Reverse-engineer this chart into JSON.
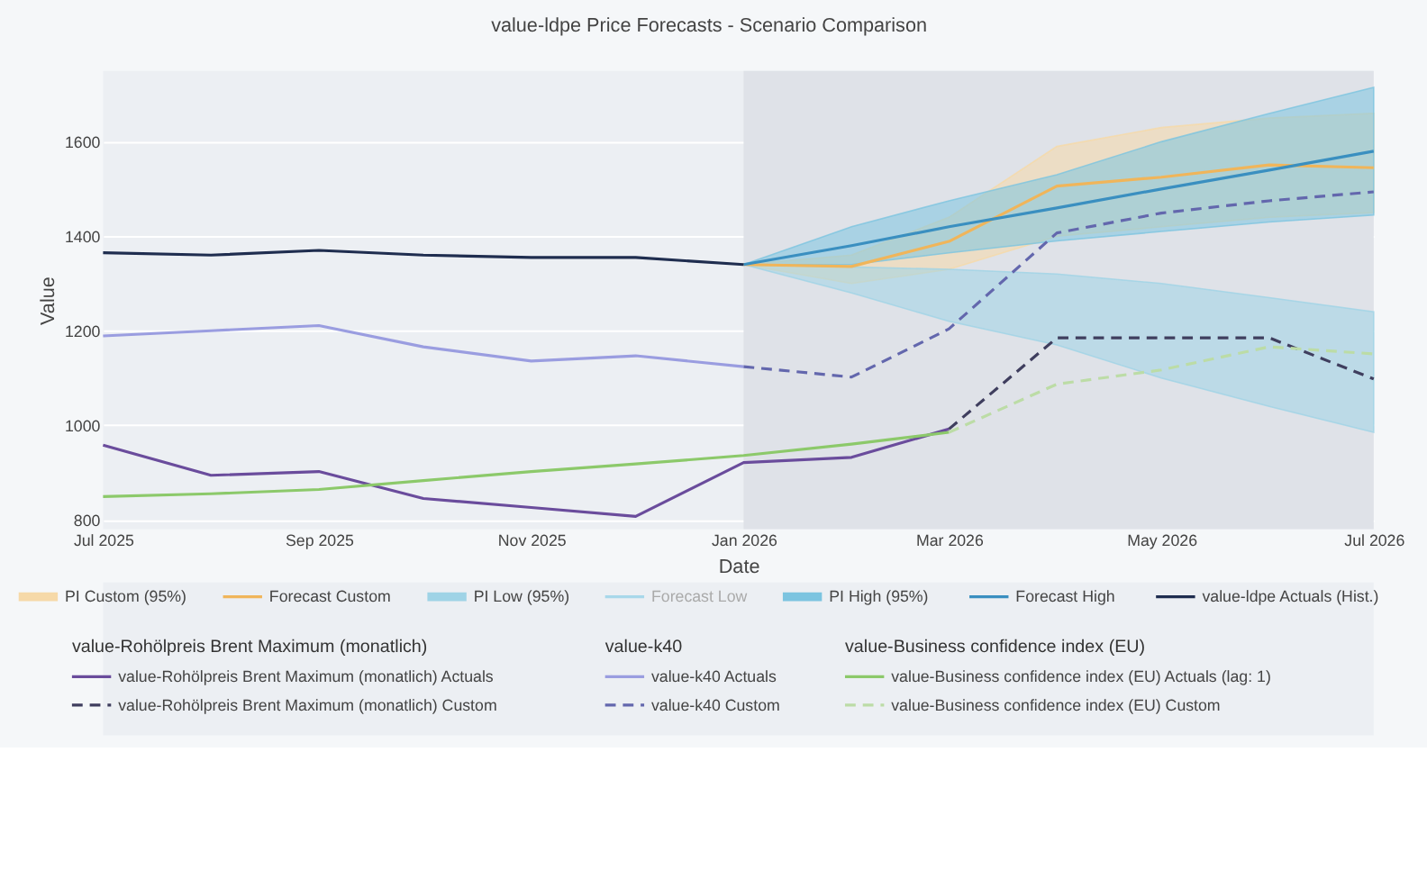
{
  "chart_data": {
    "type": "line",
    "title": "value-ldpe Price Forecasts - Scenario Comparison",
    "xlabel": "Date",
    "ylabel": "Value",
    "xlim": [
      "2025-07-01",
      "2026-07-01"
    ],
    "xticks": [
      {
        "value": "2025-07-01",
        "label": "Jul 2025"
      },
      {
        "value": "2025-09-01",
        "label": "Sep 2025"
      },
      {
        "value": "2025-11-01",
        "label": "Nov 2025"
      },
      {
        "value": "2026-01-01",
        "label": "Jan 2026"
      },
      {
        "value": "2026-03-01",
        "label": "Mar 2026"
      },
      {
        "value": "2026-05-01",
        "label": "May 2026"
      },
      {
        "value": "2026-07-01",
        "label": "Jul 2026"
      }
    ],
    "ylim": [
      780,
      1750
    ],
    "yticks": [
      800,
      1000,
      1200,
      1400,
      1600
    ],
    "grid": "y",
    "legend": "bottom",
    "bands": [
      {
        "axis": "x",
        "from": "2026-01-01",
        "to": "2026-07-01",
        "color": "#dfe2e8"
      }
    ],
    "annotations": [
      "value-Rohölpreis Brent Maximum (monatlich)",
      "value-k40",
      "value-Business confidence index (EU)"
    ],
    "series": [
      {
        "name": "PI Custom (95%)",
        "type": "area",
        "color": "#f6d9a8"
      },
      {
        "name": "Forecast Custom",
        "color": "#f0b55a",
        "x": [
          "2026-01",
          "2026-02",
          "2026-03",
          "2026-04",
          "2026-05",
          "2026-06",
          "2026-07"
        ],
        "values": [
          1340,
          1336,
          1389,
          1506,
          1525,
          1551,
          1545
        ],
        "lower": [
          1340,
          1300,
          1330,
          1400,
          1420,
          1440,
          1450
        ],
        "upper": [
          1340,
          1360,
          1440,
          1590,
          1630,
          1650,
          1660
        ]
      },
      {
        "name": "PI Low (95%)",
        "type": "area",
        "color": "#9fd3e6"
      },
      {
        "name": "Forecast Low",
        "color": "#a8d8ea",
        "x": [
          "2026-01",
          "2026-02",
          "2026-03",
          "2026-04",
          "2026-05",
          "2026-06",
          "2026-07"
        ],
        "values": [
          null,
          null,
          null,
          null,
          null,
          null,
          null
        ],
        "lower": [
          1340,
          1280,
          1220,
          1170,
          1100,
          1040,
          985
        ],
        "upper": [
          1340,
          1335,
          1330,
          1320,
          1300,
          1270,
          1240
        ]
      },
      {
        "name": "PI High (95%)",
        "type": "area",
        "color": "#7cc4e0"
      },
      {
        "name": "Forecast High",
        "color": "#3a8fc0",
        "x": [
          "2026-01",
          "2026-02",
          "2026-03",
          "2026-04",
          "2026-05",
          "2026-06",
          "2026-07"
        ],
        "values": [
          1340,
          1380,
          1420,
          1460,
          1500,
          1540,
          1580
        ],
        "lower": [
          1340,
          1340,
          1365,
          1390,
          1410,
          1430,
          1445
        ],
        "upper": [
          1340,
          1420,
          1475,
          1530,
          1600,
          1660,
          1715
        ]
      },
      {
        "name": "value-ldpe Actuals (Hist.)",
        "color": "#1f2d4f",
        "x": [
          "2025-07",
          "2025-08",
          "2025-09",
          "2025-10",
          "2025-11",
          "2025-12",
          "2026-01"
        ],
        "values": [
          1365,
          1360,
          1370,
          1360,
          1355,
          1355,
          1340
        ]
      },
      {
        "name": "value-Rohölpreis Brent Maximum (monatlich) Actuals",
        "color": "#6a4c9c",
        "x": [
          "2025-07",
          "2025-08",
          "2025-09",
          "2025-10",
          "2025-11",
          "2025-12",
          "2026-01",
          "2026-02",
          "2026-03"
        ],
        "values": [
          958,
          894,
          902,
          845,
          826,
          807,
          921,
          932,
          992
        ]
      },
      {
        "name": "value-Rohölpreis Brent Maximum (monatlich) Custom",
        "line_style": "dashed",
        "color": "#3f3e5e",
        "x": [
          "2026-03",
          "2026-04",
          "2026-05",
          "2026-06",
          "2026-07"
        ],
        "values": [
          992,
          1185,
          1185,
          1185,
          1098
        ]
      },
      {
        "name": "value-k40 Actuals",
        "color": "#9a9de0",
        "x": [
          "2025-07",
          "2025-08",
          "2025-09",
          "2025-10",
          "2025-11",
          "2025-12",
          "2026-01"
        ],
        "values": [
          1189,
          1200,
          1211,
          1166,
          1136,
          1147,
          1124
        ]
      },
      {
        "name": "value-k40 Custom",
        "line_style": "dashed",
        "color": "#6367ad",
        "x": [
          "2026-01",
          "2026-02",
          "2026-03",
          "2026-04",
          "2026-05",
          "2026-06",
          "2026-07"
        ],
        "values": [
          1124,
          1102,
          1204,
          1407,
          1449,
          1475,
          1494
        ]
      },
      {
        "name": "value-Business confidence index (EU) Actuals (lag: 1)",
        "color": "#8cc96a",
        "x": [
          "2025-07",
          "2025-08",
          "2025-09",
          "2025-10",
          "2025-11",
          "2025-12",
          "2026-01",
          "2026-02",
          "2026-03"
        ],
        "values": [
          849,
          855,
          864,
          883,
          902,
          918,
          936,
          960,
          985
        ]
      },
      {
        "name": "value-Business confidence index (EU) Custom",
        "line_style": "dashed",
        "color": "#bcdca6",
        "x": [
          "2026-03",
          "2026-04",
          "2026-05",
          "2026-06",
          "2026-07"
        ],
        "values": [
          985,
          1087,
          1117,
          1166,
          1151
        ]
      }
    ]
  }
}
